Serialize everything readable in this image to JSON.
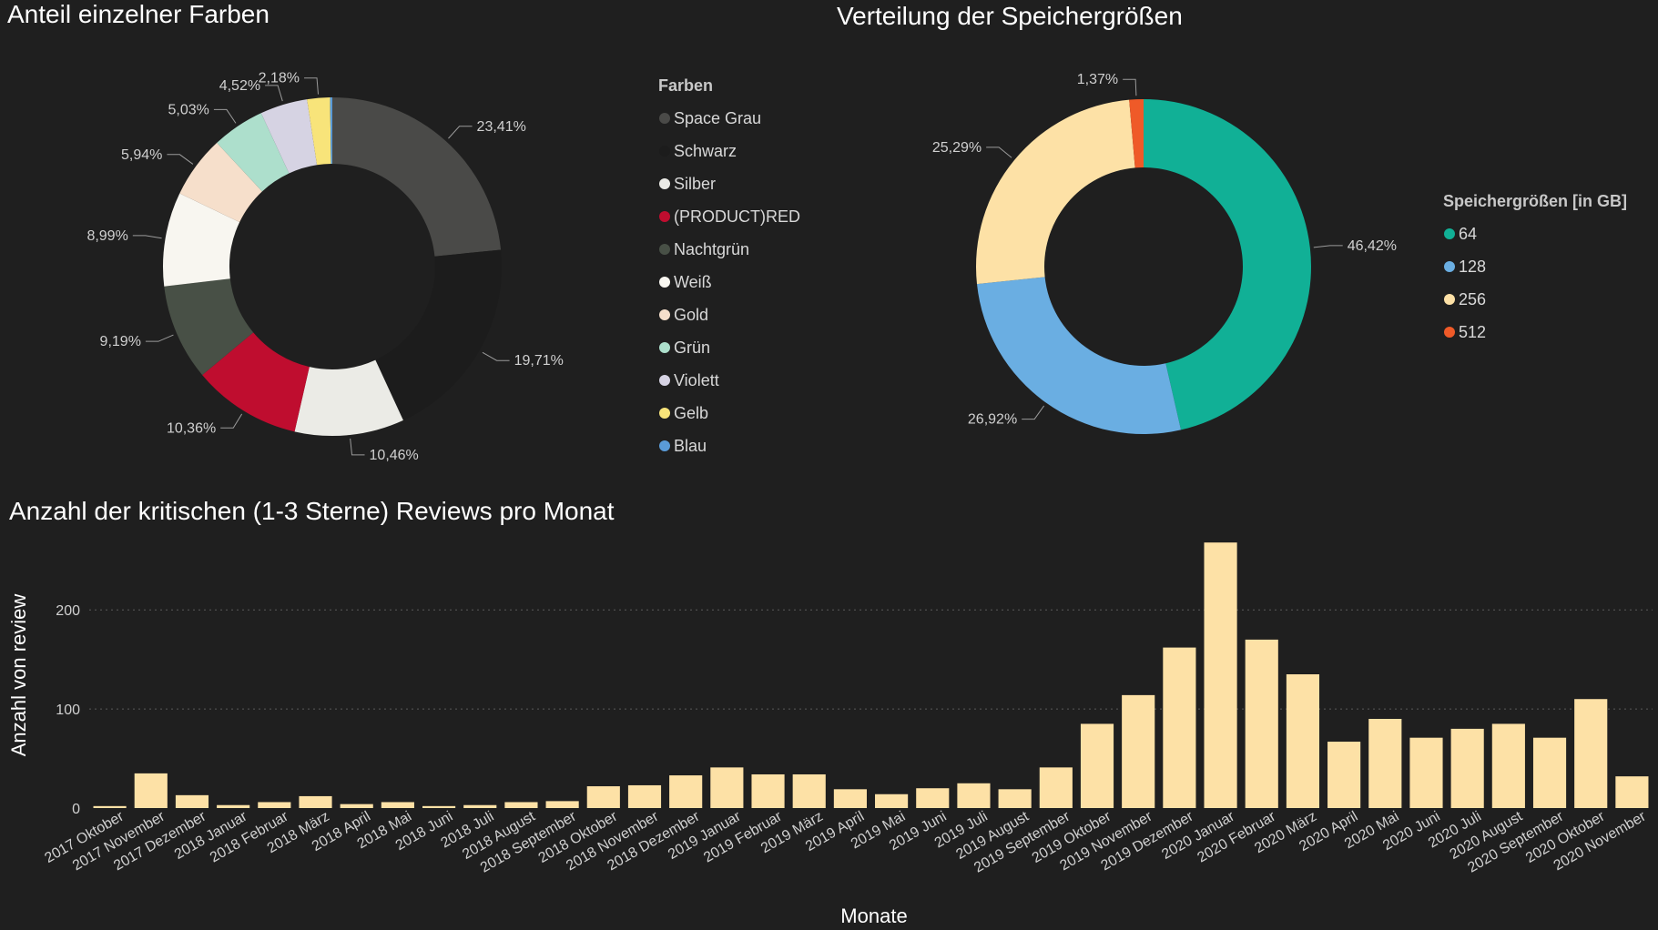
{
  "charts": {
    "colors": {
      "title": "Anteil einzelner Farben",
      "legend_title": "Farben"
    },
    "storage": {
      "title": "Verteilung der Speichergrößen",
      "legend_title": "Speichergrößen [in GB]"
    },
    "reviews": {
      "title": "Anzahl der kritischen (1-3 Sterne) Reviews pro Monat"
    }
  },
  "chart_data": [
    {
      "type": "pie",
      "title": "Anteil einzelner Farben",
      "legend_title": "Farben",
      "legend_position": "right",
      "slices": [
        {
          "label": "Space Grau",
          "value": 23.41,
          "value_label": "23,41%",
          "color": "#4a4a48"
        },
        {
          "label": "Schwarz",
          "value": 19.71,
          "value_label": "19,71%",
          "color": "#1c1c1c"
        },
        {
          "label": "Silber",
          "value": 10.46,
          "value_label": "10,46%",
          "color": "#ebebe6"
        },
        {
          "label": "(PRODUCT)RED",
          "value": 10.36,
          "value_label": "10,36%",
          "color": "#bf0d2f"
        },
        {
          "label": "Nachtgrün",
          "value": 9.19,
          "value_label": "9,19%",
          "color": "#485046"
        },
        {
          "label": "Weiß",
          "value": 8.99,
          "value_label": "8,99%",
          "color": "#f8f6f0"
        },
        {
          "label": "Gold",
          "value": 5.94,
          "value_label": "5,94%",
          "color": "#f6dfcb"
        },
        {
          "label": "Grün",
          "value": 5.03,
          "value_label": "5,03%",
          "color": "#addfcc"
        },
        {
          "label": "Violett",
          "value": 4.52,
          "value_label": "4,52%",
          "color": "#d6d3e3"
        },
        {
          "label": "Gelb",
          "value": 2.18,
          "value_label": "2,18%",
          "color": "#f8e47a"
        },
        {
          "label": "Blau",
          "value": 0.21,
          "value_label": "",
          "color": "#5a9bd8"
        }
      ]
    },
    {
      "type": "pie",
      "title": "Verteilung der Speichergrößen",
      "legend_title": "Speichergrößen [in GB]",
      "legend_position": "right",
      "slices": [
        {
          "label": "64",
          "value": 46.42,
          "value_label": "46,42%",
          "color": "#11b096"
        },
        {
          "label": "128",
          "value": 26.92,
          "value_label": "26,92%",
          "color": "#6aaee2"
        },
        {
          "label": "256",
          "value": 25.29,
          "value_label": "25,29%",
          "color": "#fde1a6"
        },
        {
          "label": "512",
          "value": 1.37,
          "value_label": "1,37%",
          "color": "#ef5a28"
        }
      ]
    },
    {
      "type": "bar",
      "title": "Anzahl der kritischen (1-3 Sterne) Reviews pro Monat",
      "xlabel": "Monate",
      "ylabel": "Anzahl von review",
      "ylim": [
        0,
        270
      ],
      "yticks": [
        0,
        100,
        200
      ],
      "grid": true,
      "bar_color": "#fde1a6",
      "categories": [
        "2017 Oktober",
        "2017 November",
        "2017 Dezember",
        "2018 Januar",
        "2018 Februar",
        "2018 März",
        "2018 April",
        "2018 Mai",
        "2018 Juni",
        "2018 Juli",
        "2018 August",
        "2018 September",
        "2018 Oktober",
        "2018 November",
        "2018 Dezember",
        "2019 Januar",
        "2019 Februar",
        "2019 März",
        "2019 April",
        "2019 Mai",
        "2019 Juni",
        "2019 Juli",
        "2019 August",
        "2019 September",
        "2019 Oktober",
        "2019 November",
        "2019 Dezember",
        "2020 Januar",
        "2020 Februar",
        "2020 März",
        "2020 April",
        "2020 Mai",
        "2020 Juni",
        "2020 Juli",
        "2020 August",
        "2020 September",
        "2020 Oktober",
        "2020 November"
      ],
      "values": [
        2,
        35,
        13,
        3,
        6,
        12,
        4,
        6,
        2,
        3,
        6,
        7,
        22,
        23,
        33,
        41,
        34,
        34,
        19,
        14,
        20,
        25,
        19,
        41,
        85,
        114,
        162,
        268,
        170,
        135,
        67,
        90,
        71,
        80,
        85,
        71,
        110,
        32
      ]
    }
  ]
}
